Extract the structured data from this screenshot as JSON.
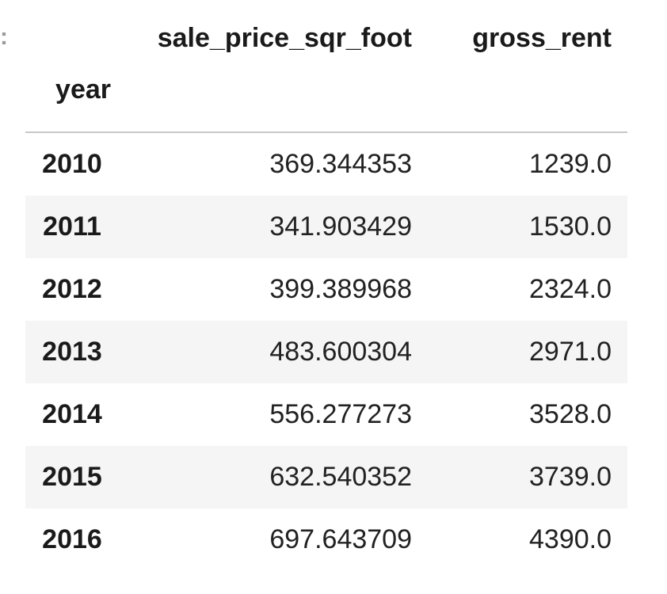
{
  "prompt_mark": ":",
  "table": {
    "columns": [
      "sale_price_sqr_foot",
      "gross_rent"
    ],
    "index_name": "year",
    "rows": [
      {
        "year": "2010",
        "sale_price_sqr_foot": "369.344353",
        "gross_rent": "1239.0"
      },
      {
        "year": "2011",
        "sale_price_sqr_foot": "341.903429",
        "gross_rent": "1530.0"
      },
      {
        "year": "2012",
        "sale_price_sqr_foot": "399.389968",
        "gross_rent": "2324.0"
      },
      {
        "year": "2013",
        "sale_price_sqr_foot": "483.600304",
        "gross_rent": "2971.0"
      },
      {
        "year": "2014",
        "sale_price_sqr_foot": "556.277273",
        "gross_rent": "3528.0"
      },
      {
        "year": "2015",
        "sale_price_sqr_foot": "632.540352",
        "gross_rent": "3739.0"
      },
      {
        "year": "2016",
        "sale_price_sqr_foot": "697.643709",
        "gross_rent": "4390.0"
      }
    ]
  },
  "colors": {
    "stripe": "#f5f5f5",
    "header_rule": "#c8c8c8",
    "text": "#1a1a1a"
  }
}
